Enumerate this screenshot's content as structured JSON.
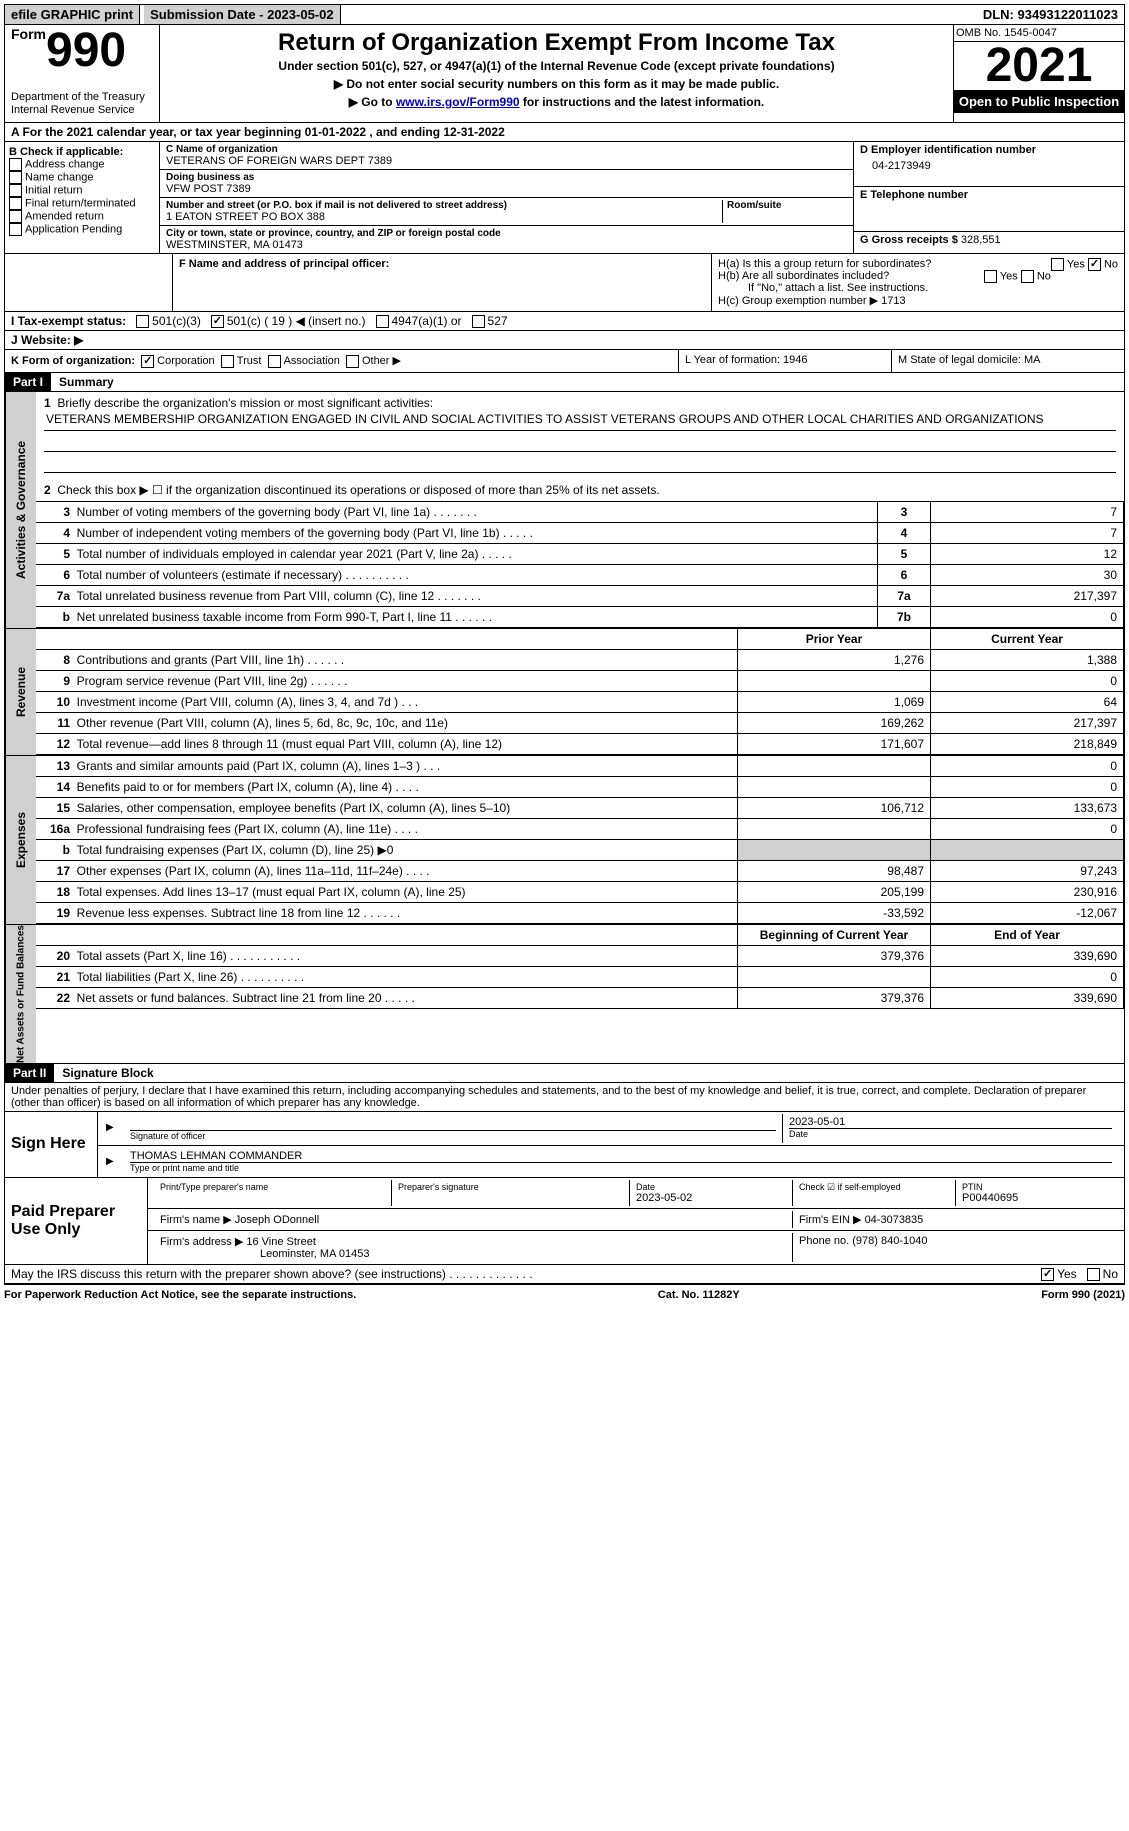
{
  "top_bar": {
    "efile": "efile GRAPHIC print",
    "submission": "Submission Date - 2023-05-02",
    "dln": "DLN: 93493122011023"
  },
  "header": {
    "form_word": "Form",
    "form_num": "990",
    "dept": "Department of the Treasury",
    "irs": "Internal Revenue Service",
    "title": "Return of Organization Exempt From Income Tax",
    "subtitle": "Under section 501(c), 527, or 4947(a)(1) of the Internal Revenue Code (except private foundations)",
    "note1": "Do not enter social security numbers on this form as it may be made public.",
    "note2_pre": "Go to ",
    "note2_link": "www.irs.gov/Form990",
    "note2_post": " for instructions and the latest information.",
    "omb": "OMB No. 1545-0047",
    "year": "2021",
    "open": "Open to Public Inspection"
  },
  "line_a": "A For the 2021 calendar year, or tax year beginning 01-01-2022    , and ending 12-31-2022",
  "sec_b": {
    "label": "B Check if applicable:",
    "items": [
      "Address change",
      "Name change",
      "Initial return",
      "Final return/terminated",
      "Amended return",
      "Application Pending"
    ]
  },
  "sec_c": {
    "name_label": "C Name of organization",
    "name": "VETERANS OF FOREIGN WARS DEPT 7389",
    "dba_label": "Doing business as",
    "dba": "VFW POST 7389",
    "addr_label": "Number and street (or P.O. box if mail is not delivered to street address)",
    "room_label": "Room/suite",
    "addr": "1 EATON STREET PO BOX 388",
    "city_label": "City or town, state or province, country, and ZIP or foreign postal code",
    "city": "WESTMINSTER, MA  01473"
  },
  "sec_d": {
    "label": "D Employer identification number",
    "value": "04-2173949"
  },
  "sec_e": {
    "label": "E Telephone number",
    "value": ""
  },
  "sec_g": {
    "label": "G Gross receipts $",
    "value": "328,551"
  },
  "sec_f": {
    "label": "F Name and address of principal officer:",
    "value": ""
  },
  "sec_h": {
    "ha": "H(a)  Is this a group return for subordinates?",
    "hb": "H(b)  Are all subordinates included?",
    "hb_note": "If \"No,\" attach a list. See instructions.",
    "hc": "H(c)  Group exemption number ▶  1713"
  },
  "sec_i": {
    "label": "I   Tax-exempt status:",
    "c3": "501(c)(3)",
    "c": "501(c) ( 19 ) ◀ (insert no.)",
    "a1": "4947(a)(1) or",
    "527": "527"
  },
  "sec_j": "J   Website: ▶",
  "sec_k": {
    "label": "K Form of organization:",
    "corp": "Corporation",
    "trust": "Trust",
    "assoc": "Association",
    "other": "Other ▶"
  },
  "sec_l": "L Year of formation: 1946",
  "sec_m": "M State of legal domicile: MA",
  "part1": {
    "header": "Part I",
    "title": "Summary",
    "tabs": {
      "gov": "Activities & Governance",
      "rev": "Revenue",
      "exp": "Expenses",
      "net": "Net Assets or Fund Balances"
    },
    "l1_label": "Briefly describe the organization's mission or most significant activities:",
    "l1_text": "VETERANS MEMBERSHIP ORGANIZATION ENGAGED IN CIVIL AND SOCIAL ACTIVITIES TO ASSIST VETERANS GROUPS AND OTHER LOCAL CHARITIES AND ORGANIZATIONS",
    "l2": "Check this box ▶ ☐ if the organization discontinued its operations or disposed of more than 25% of its net assets.",
    "rows_gov": [
      {
        "n": "3",
        "d": "Number of voting members of the governing body (Part VI, line 1a)   .     .     .     .     .     .     .",
        "box": "3",
        "v": "7"
      },
      {
        "n": "4",
        "d": "Number of independent voting members of the governing body (Part VI, line 1b)   .     .     .     .     .",
        "box": "4",
        "v": "7"
      },
      {
        "n": "5",
        "d": "Total number of individuals employed in calendar year 2021 (Part V, line 2a)   .     .     .     .     .",
        "box": "5",
        "v": "12"
      },
      {
        "n": "6",
        "d": "Total number of volunteers (estimate if necessary)    .     .     .     .     .     .     .     .     .     .",
        "box": "6",
        "v": "30"
      },
      {
        "n": "7a",
        "d": "Total unrelated business revenue from Part VIII, column (C), line 12   .     .     .     .     .     .     .",
        "box": "7a",
        "v": "217,397"
      },
      {
        "n": "b",
        "d": "Net unrelated business taxable income from Form 990-T, Part I, line 11   .     .     .     .     .     .",
        "box": "7b",
        "v": "0"
      }
    ],
    "col_headers": {
      "prior": "Prior Year",
      "current": "Current Year"
    },
    "rows_rev": [
      {
        "n": "8",
        "d": "Contributions and grants (Part VIII, line 1h)   .     .     .     .     .     .",
        "p": "1,276",
        "c": "1,388"
      },
      {
        "n": "9",
        "d": "Program service revenue (Part VIII, line 2g)   .     .     .     .     .     .",
        "p": "",
        "c": "0"
      },
      {
        "n": "10",
        "d": "Investment income (Part VIII, column (A), lines 3, 4, and 7d )   .     .     .",
        "p": "1,069",
        "c": "64"
      },
      {
        "n": "11",
        "d": "Other revenue (Part VIII, column (A), lines 5, 6d, 8c, 9c, 10c, and 11e)",
        "p": "169,262",
        "c": "217,397"
      },
      {
        "n": "12",
        "d": "Total revenue—add lines 8 through 11 (must equal Part VIII, column (A), line 12)",
        "p": "171,607",
        "c": "218,849"
      }
    ],
    "rows_exp": [
      {
        "n": "13",
        "d": "Grants and similar amounts paid (Part IX, column (A), lines 1–3 )   .     .     .",
        "p": "",
        "c": "0"
      },
      {
        "n": "14",
        "d": "Benefits paid to or for members (Part IX, column (A), line 4)   .     .     .     .",
        "p": "",
        "c": "0"
      },
      {
        "n": "15",
        "d": "Salaries, other compensation, employee benefits (Part IX, column (A), lines 5–10)",
        "p": "106,712",
        "c": "133,673"
      },
      {
        "n": "16a",
        "d": "Professional fundraising fees (Part IX, column (A), line 11e)   .     .     .     .",
        "p": "",
        "c": "0"
      },
      {
        "n": "b",
        "d": "Total fundraising expenses (Part IX, column (D), line 25) ▶0",
        "p": "GRAY",
        "c": "GRAY"
      },
      {
        "n": "17",
        "d": "Other expenses (Part IX, column (A), lines 11a–11d, 11f–24e)   .     .     .     .",
        "p": "98,487",
        "c": "97,243"
      },
      {
        "n": "18",
        "d": "Total expenses. Add lines 13–17 (must equal Part IX, column (A), line 25)",
        "p": "205,199",
        "c": "230,916"
      },
      {
        "n": "19",
        "d": "Revenue less expenses. Subtract line 18 from line 12   .     .     .     .     .     .",
        "p": "-33,592",
        "c": "-12,067"
      }
    ],
    "col_headers2": {
      "begin": "Beginning of Current Year",
      "end": "End of Year"
    },
    "rows_net": [
      {
        "n": "20",
        "d": "Total assets (Part X, line 16)   .     .     .     .     .     .     .     .     .     .     .",
        "p": "379,376",
        "c": "339,690"
      },
      {
        "n": "21",
        "d": "Total liabilities (Part X, line 26)   .     .     .     .     .     .     .     .     .     .",
        "p": "",
        "c": "0"
      },
      {
        "n": "22",
        "d": "Net assets or fund balances. Subtract line 21 from line 20   .     .     .     .     .",
        "p": "379,376",
        "c": "339,690"
      }
    ]
  },
  "part2": {
    "header": "Part II",
    "title": "Signature Block",
    "jurat": "Under penalties of perjury, I declare that I have examined this return, including accompanying schedules and statements, and to the best of my knowledge and belief, it is true, correct, and complete. Declaration of preparer (other than officer) is based on all information of which preparer has any knowledge.",
    "sign_here": "Sign Here",
    "sig_officer": "Signature of officer",
    "sig_date": "2023-05-01",
    "officer_name": "THOMAS LEHMAN  COMMANDER",
    "name_title": "Type or print name and title",
    "paid": "Paid Preparer Use Only",
    "prep_name_label": "Print/Type preparer's name",
    "prep_sig_label": "Preparer's signature",
    "prep_date_label": "Date",
    "prep_date": "2023-05-02",
    "check_if": "Check ☑ if self-employed",
    "ptin_label": "PTIN",
    "ptin": "P00440695",
    "firm_name_label": "Firm's name    ▶",
    "firm_name": "Joseph ODonnell",
    "firm_ein_label": "Firm's EIN ▶",
    "firm_ein": "04-3073835",
    "firm_addr_label": "Firm's address ▶",
    "firm_addr": "16 Vine Street",
    "firm_city": "Leominster, MA  01453",
    "phone_label": "Phone no.",
    "phone": "(978) 840-1040",
    "discuss": "May the IRS discuss this return with the preparer shown above? (see instructions)   .     .     .     .     .     .     .     .     .     .     .     .     .",
    "yes": "Yes",
    "no": "No"
  },
  "footer": {
    "pra": "For Paperwork Reduction Act Notice, see the separate instructions.",
    "cat": "Cat. No. 11282Y",
    "form": "Form 990 (2021)"
  }
}
